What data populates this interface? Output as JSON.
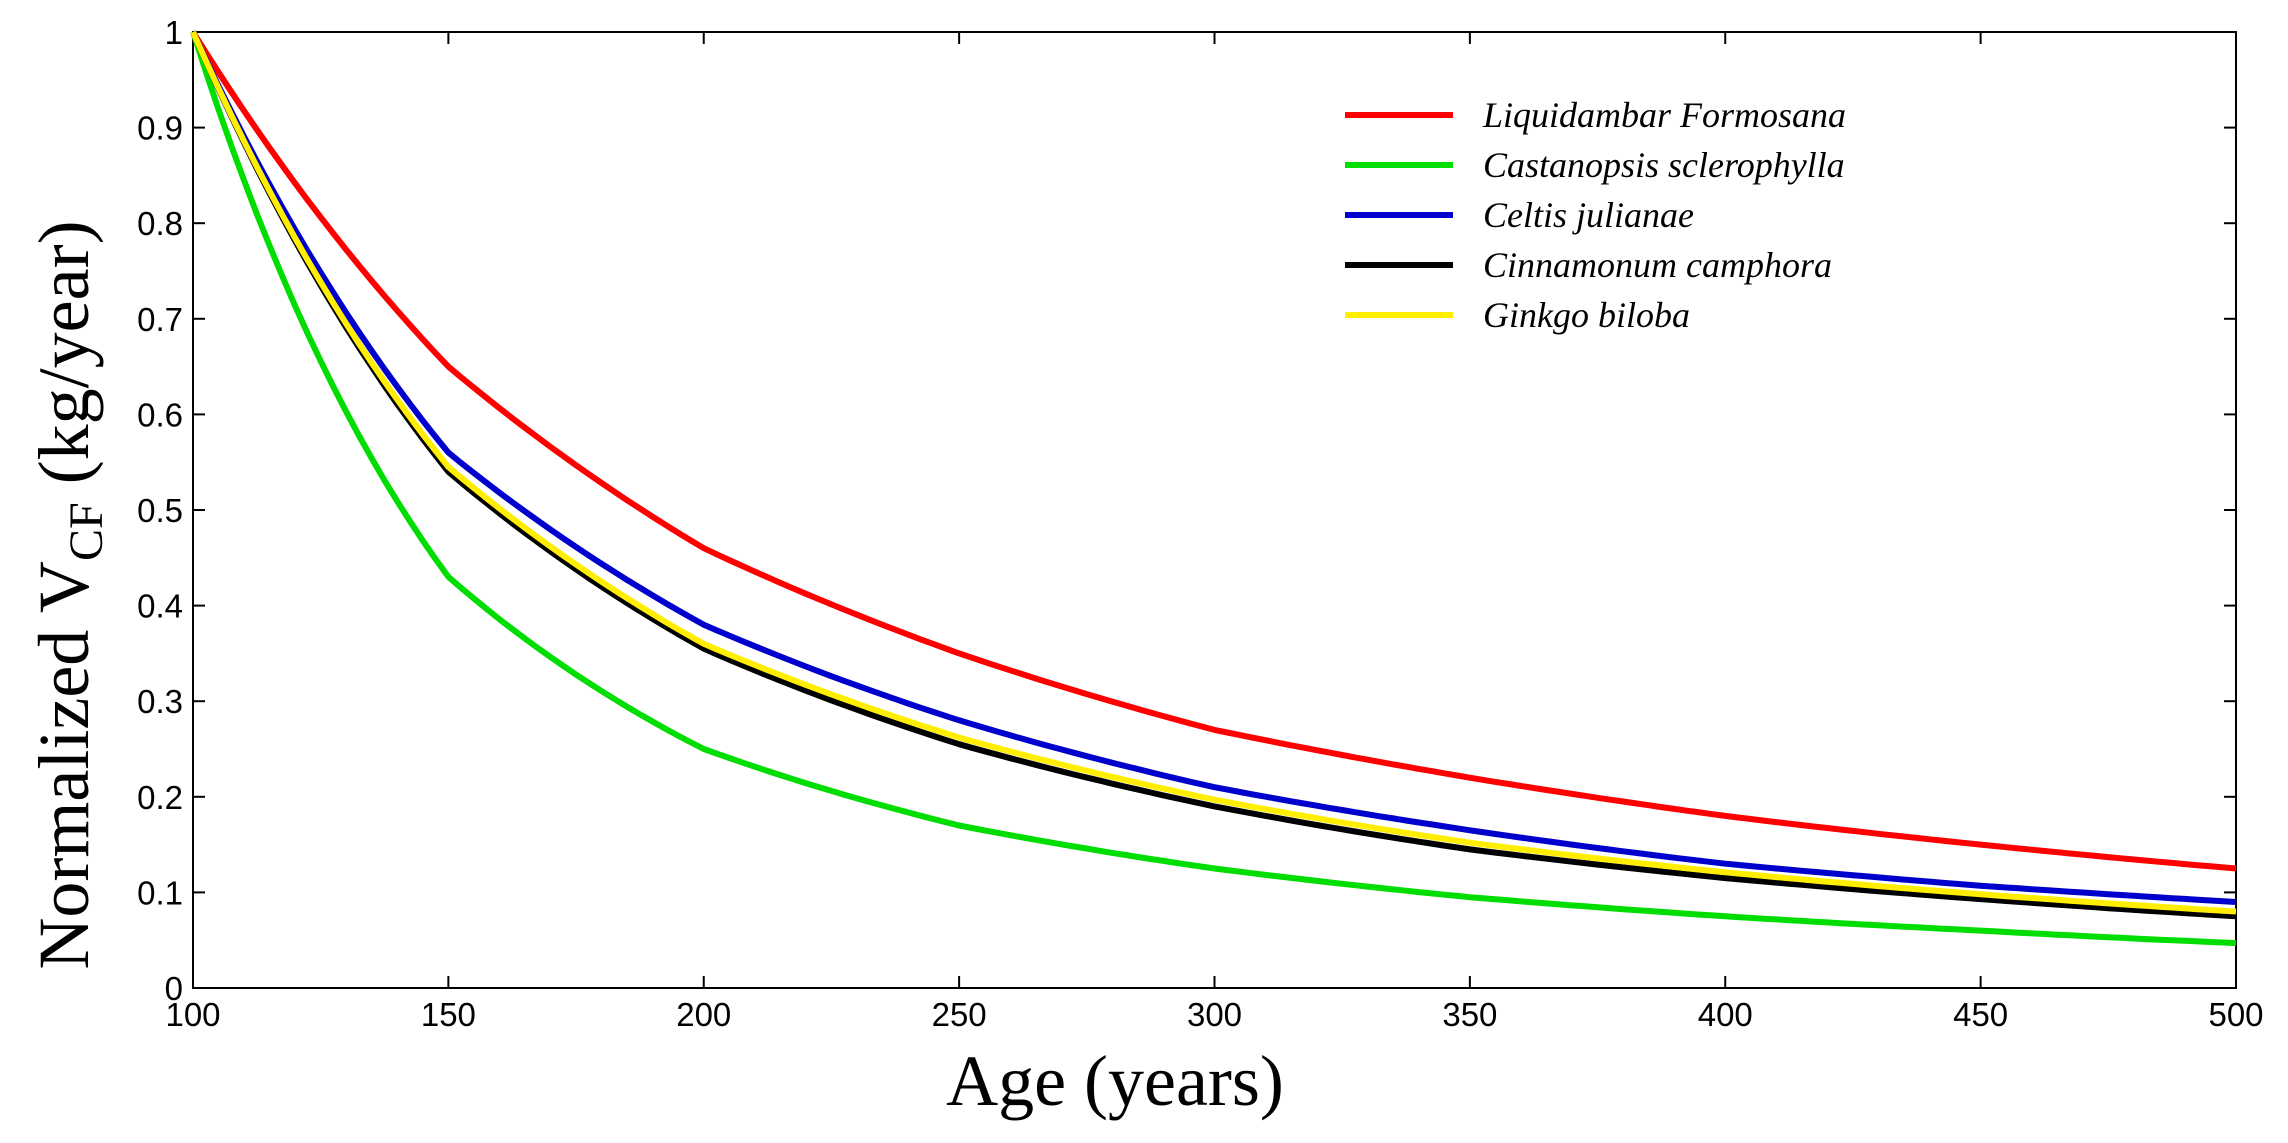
{
  "chart_data": {
    "type": "line",
    "title": "",
    "xlabel": "Age (years)",
    "ylabel_main": "Normalized V",
    "ylabel_sub": "CF",
    "ylabel_unit": " (kg/year)",
    "xlim": [
      100,
      500
    ],
    "ylim": [
      0,
      1
    ],
    "x_ticks": [
      100,
      150,
      200,
      250,
      300,
      350,
      400,
      450,
      500
    ],
    "x_tick_labels": [
      "100",
      "150",
      "200",
      "250",
      "300",
      "350",
      "400",
      "450",
      "500"
    ],
    "y_ticks": [
      0,
      0.1,
      0.2,
      0.3,
      0.4,
      0.5,
      0.6,
      0.7,
      0.8,
      0.9,
      1
    ],
    "y_tick_labels": [
      "0",
      "0.1",
      "0.2",
      "0.3",
      "0.4",
      "0.5",
      "0.6",
      "0.7",
      "0.8",
      "0.9",
      "1"
    ],
    "grid": false,
    "legend_position": "top-right",
    "x": [
      100,
      150,
      200,
      250,
      300,
      350,
      400,
      450,
      500
    ],
    "series": [
      {
        "name": "Liquidambar Formosana",
        "color": "#ff0000",
        "values": [
          1.0,
          0.65,
          0.46,
          0.35,
          0.27,
          0.22,
          0.18,
          0.15,
          0.125
        ]
      },
      {
        "name": "Castanopsis sclerophylla",
        "color": "#00dd00",
        "values": [
          1.0,
          0.43,
          0.25,
          0.17,
          0.125,
          0.095,
          0.075,
          0.06,
          0.047
        ]
      },
      {
        "name": "Celtis julianae",
        "color": "#0000cc",
        "values": [
          1.0,
          0.56,
          0.38,
          0.28,
          0.21,
          0.165,
          0.13,
          0.107,
          0.09
        ]
      },
      {
        "name": "Cinnamonum camphora",
        "color": "#000000",
        "values": [
          1.0,
          0.54,
          0.355,
          0.255,
          0.19,
          0.145,
          0.115,
          0.093,
          0.075
        ]
      },
      {
        "name": "Ginkgo biloba",
        "color": "#ffee00",
        "values": [
          1.0,
          0.545,
          0.36,
          0.262,
          0.197,
          0.152,
          0.121,
          0.098,
          0.08
        ]
      }
    ]
  }
}
